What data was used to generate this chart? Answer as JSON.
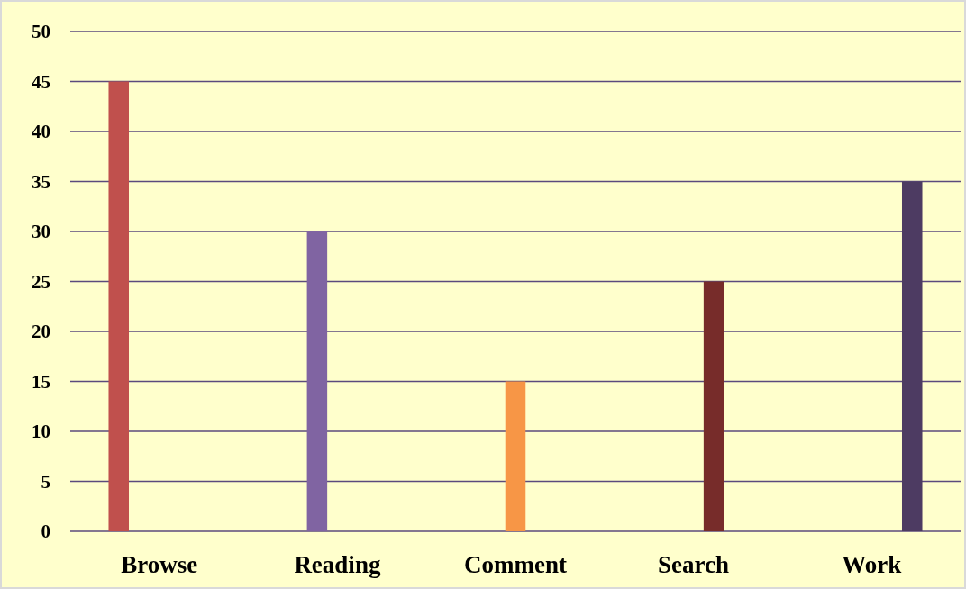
{
  "chart_data": {
    "type": "bar",
    "categories": [
      "Browse",
      "Reading",
      "Comment",
      "Search",
      "Work"
    ],
    "series": [
      {
        "color": "#c0504d",
        "values": [
          45,
          null,
          null,
          null,
          null
        ]
      },
      {
        "color": "#8064a2",
        "values": [
          null,
          30,
          null,
          null,
          null
        ]
      },
      {
        "color": "#f79646",
        "values": [
          null,
          null,
          15,
          null,
          null
        ]
      },
      {
        "color": "#772c2a",
        "values": [
          null,
          null,
          null,
          25,
          null
        ]
      },
      {
        "color": "#4d3b62",
        "values": [
          null,
          null,
          null,
          null,
          35
        ]
      }
    ],
    "ylim": [
      0,
      50
    ],
    "yticks": [
      0,
      5,
      10,
      15,
      20,
      25,
      30,
      35,
      40,
      45,
      50
    ],
    "grid": "y"
  }
}
